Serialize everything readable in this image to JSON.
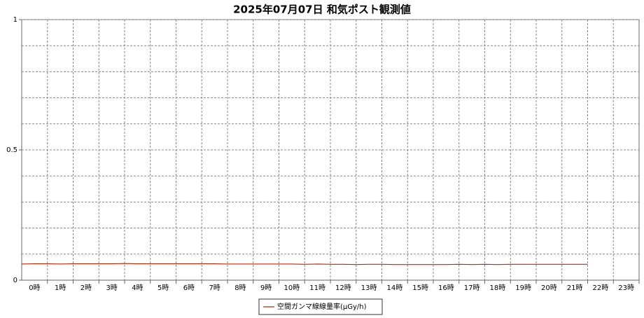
{
  "chart_data": {
    "type": "line",
    "title": "2025年07月07日 和気ポスト観測値",
    "categories": [
      "0時",
      "1時",
      "2時",
      "3時",
      "4時",
      "5時",
      "6時",
      "7時",
      "8時",
      "9時",
      "10時",
      "11時",
      "12時",
      "13時",
      "14時",
      "15時",
      "16時",
      "17時",
      "18時",
      "19時",
      "20時",
      "21時",
      "22時",
      "23時"
    ],
    "x": [
      0,
      0.5,
      1,
      1.5,
      2,
      2.5,
      3,
      3.5,
      4,
      4.5,
      5,
      5.5,
      6,
      6.5,
      7,
      7.5,
      8,
      8.5,
      9,
      9.5,
      10,
      10.5,
      11,
      11.5,
      12,
      12.5,
      13,
      13.5,
      14,
      14.5,
      15,
      15.5,
      16,
      16.5,
      17,
      17.5,
      18,
      18.5,
      19,
      19.5,
      20,
      20.5,
      21,
      21.5,
      22
    ],
    "series": [
      {
        "name": "空間ガンマ線線量率(μGy/h)",
        "color": "#cc2200",
        "values": [
          0.062,
          0.063,
          0.063,
          0.062,
          0.063,
          0.063,
          0.063,
          0.063,
          0.064,
          0.063,
          0.063,
          0.063,
          0.063,
          0.063,
          0.063,
          0.063,
          0.062,
          0.062,
          0.062,
          0.062,
          0.062,
          0.062,
          0.061,
          0.062,
          0.061,
          0.061,
          0.06,
          0.061,
          0.061,
          0.06,
          0.06,
          0.06,
          0.06,
          0.06,
          0.061,
          0.06,
          0.061,
          0.06,
          0.061,
          0.061,
          0.061,
          0.061,
          0.061,
          0.061,
          0.061
        ]
      }
    ],
    "xlim": [
      0,
      24
    ],
    "ylim": [
      0,
      1
    ],
    "yticks": [
      0,
      0.5,
      1
    ],
    "ygrid": [
      0.1,
      0.2,
      0.3,
      0.4,
      0.5,
      0.6,
      0.7,
      0.8,
      0.9,
      1
    ],
    "grid": true
  }
}
